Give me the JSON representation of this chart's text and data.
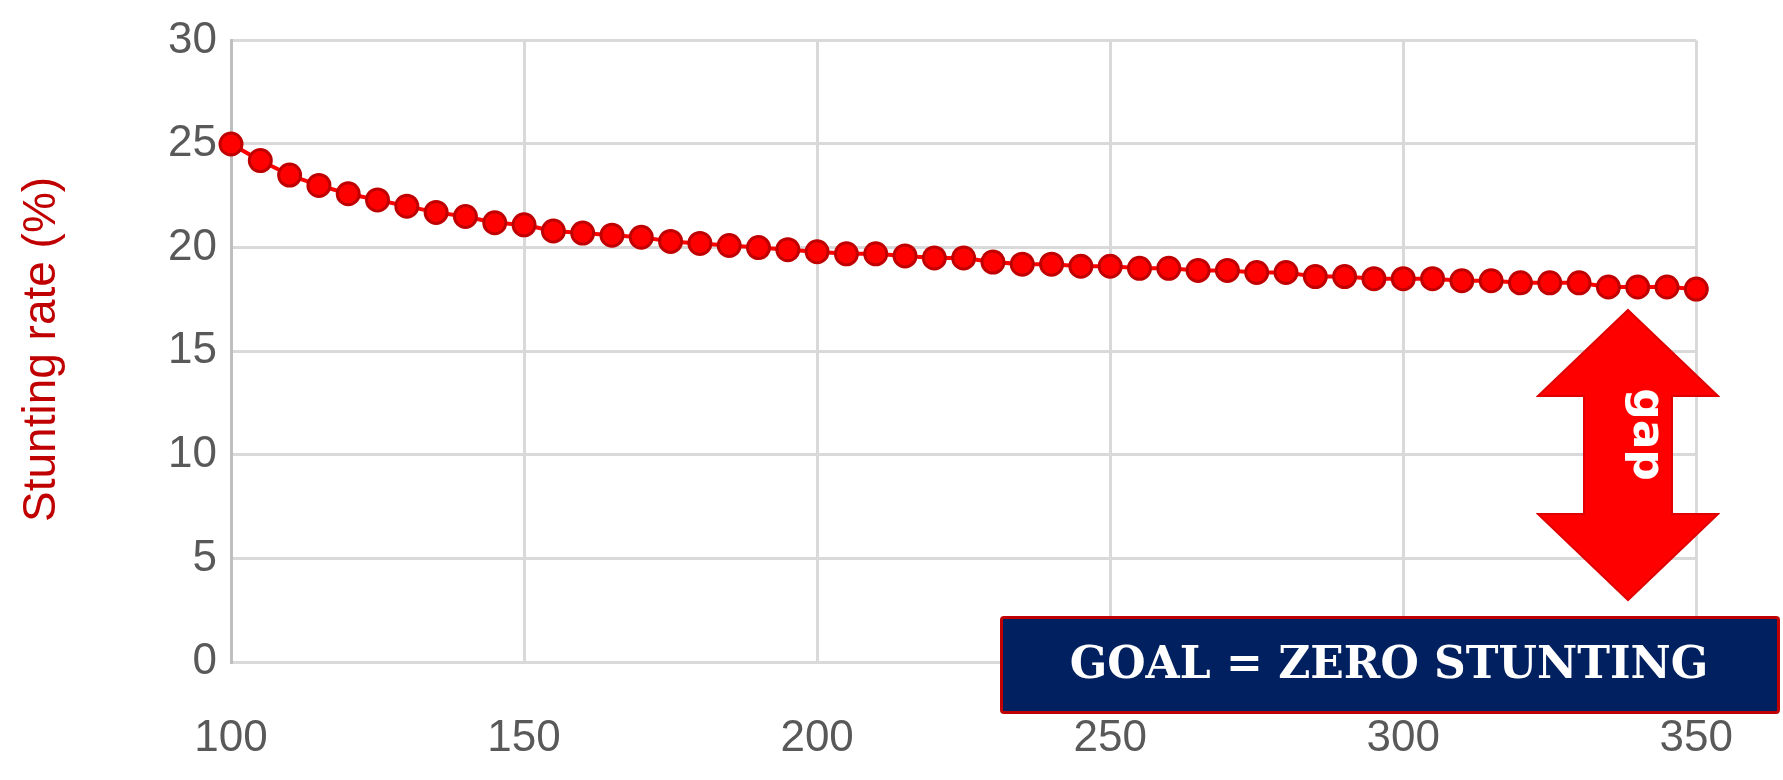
{
  "chart_data": {
    "type": "line",
    "ylabel": "Stunting rate (%)",
    "x": [
      100,
      105,
      110,
      115,
      120,
      125,
      130,
      135,
      140,
      145,
      150,
      155,
      160,
      165,
      170,
      175,
      180,
      185,
      190,
      195,
      200,
      205,
      210,
      215,
      220,
      225,
      230,
      235,
      240,
      245,
      250,
      255,
      260,
      265,
      270,
      275,
      280,
      285,
      290,
      295,
      300,
      305,
      310,
      315,
      320,
      325,
      330,
      335,
      340,
      345,
      350
    ],
    "series": [
      {
        "color": "#ff0000",
        "values": [
          25.0,
          24.2,
          23.5,
          23.0,
          22.6,
          22.3,
          22.0,
          21.7,
          21.5,
          21.2,
          21.1,
          20.8,
          20.7,
          20.6,
          20.5,
          20.3,
          20.2,
          20.1,
          20.0,
          19.9,
          19.8,
          19.7,
          19.7,
          19.6,
          19.5,
          19.5,
          19.3,
          19.2,
          19.2,
          19.1,
          19.1,
          19.0,
          19.0,
          18.9,
          18.9,
          18.8,
          18.8,
          18.6,
          18.6,
          18.5,
          18.5,
          18.5,
          18.4,
          18.4,
          18.3,
          18.3,
          18.3,
          18.1,
          18.1,
          18.1,
          18.0
        ]
      }
    ],
    "xlim": [
      100,
      350
    ],
    "xticks": [
      100,
      150,
      200,
      250,
      300,
      350
    ],
    "ylim": [
      0,
      30
    ],
    "yticks": [
      0,
      5,
      10,
      15,
      20,
      25,
      30
    ],
    "grid": true,
    "legend": false,
    "marker": "circle",
    "line_style": "solid",
    "annotations": [
      "gap",
      "GOAL = ZERO STUNTING"
    ]
  }
}
